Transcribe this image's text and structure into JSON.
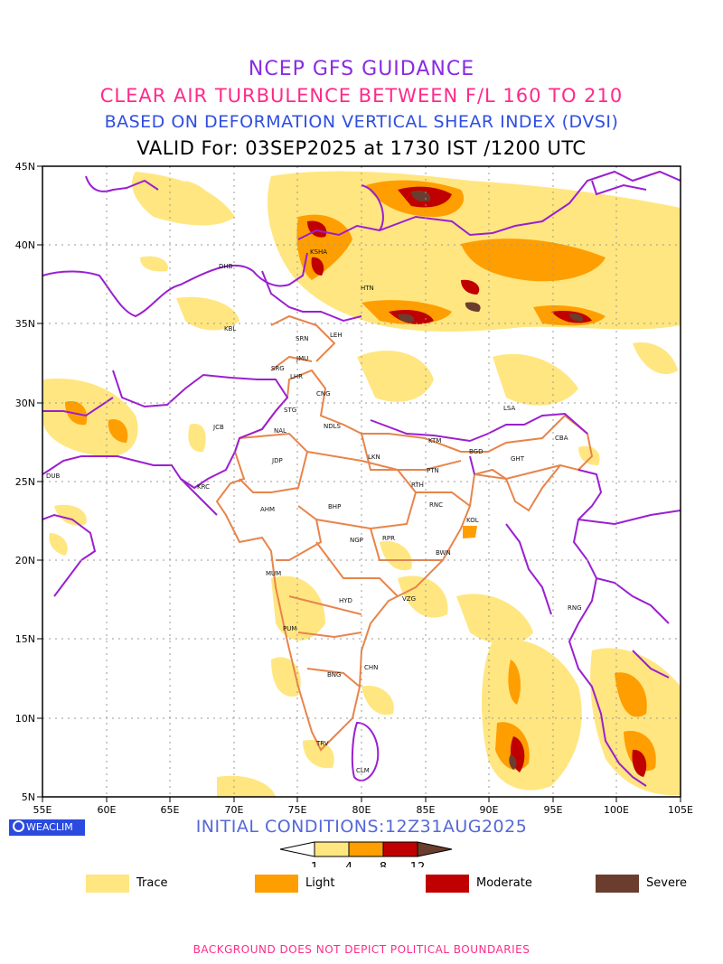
{
  "header": {
    "line1": "NCEP GFS GUIDANCE",
    "line2": "CLEAR AIR TURBULENCE BETWEEN F/L 160 TO 210",
    "line3": "BASED ON DEFORMATION VERTICAL SHEAR INDEX (DVSI)",
    "line4": "VALID For: 03SEP2025 at 1730 IST /1200 UTC"
  },
  "map": {
    "lon_labels": [
      "55E",
      "60E",
      "65E",
      "70E",
      "75E",
      "80E",
      "85E",
      "90E",
      "95E",
      "100E",
      "105E"
    ],
    "lat_labels": [
      "45N",
      "40N",
      "35N",
      "30N",
      "25N",
      "20N",
      "15N",
      "10N",
      "5N"
    ],
    "lon_range": [
      55,
      105
    ],
    "lat_range": [
      5,
      45
    ],
    "grid": "dotted",
    "colors": {
      "trace": "#ffe680",
      "light": "#ff9e00",
      "moderate": "#c00000",
      "severe": "#6b3d2e",
      "boundary": "#9b1fd0",
      "india_regions": "#e8844a"
    },
    "cities": [
      {
        "code": "DHB"
      },
      {
        "code": "KSHA"
      },
      {
        "code": "HTN"
      },
      {
        "code": "KBL"
      },
      {
        "code": "SRN"
      },
      {
        "code": "LEH"
      },
      {
        "code": "JMU"
      },
      {
        "code": "SRG"
      },
      {
        "code": "LHR"
      },
      {
        "code": "CNG"
      },
      {
        "code": "STG"
      },
      {
        "code": "LSA"
      },
      {
        "code": "JCB"
      },
      {
        "code": "NAL"
      },
      {
        "code": "NDLS"
      },
      {
        "code": "KTM"
      },
      {
        "code": "CBA"
      },
      {
        "code": "BGD"
      },
      {
        "code": "GHT"
      },
      {
        "code": "JDP"
      },
      {
        "code": "LKN"
      },
      {
        "code": "PTN"
      },
      {
        "code": "DUB"
      },
      {
        "code": "KRC"
      },
      {
        "code": "RTH"
      },
      {
        "code": "BHP"
      },
      {
        "code": "RNC"
      },
      {
        "code": "AHM"
      },
      {
        "code": "KOL"
      },
      {
        "code": "NGP"
      },
      {
        "code": "RPR"
      },
      {
        "code": "BWN"
      },
      {
        "code": "MUM"
      },
      {
        "code": "RNG"
      },
      {
        "code": "HYD"
      },
      {
        "code": "VZG"
      },
      {
        "code": "PUM"
      },
      {
        "code": "CHN"
      },
      {
        "code": "BNG"
      },
      {
        "code": "TRV"
      },
      {
        "code": "CLM"
      }
    ]
  },
  "footer": {
    "logo_text": "WEACLIM",
    "initial_conditions": "INITIAL CONDITIONS:12Z31AUG2025",
    "colorbar_ticks": [
      "1",
      "4",
      "8",
      "12"
    ],
    "legend": [
      {
        "label": "Trace",
        "color": "#ffe680"
      },
      {
        "label": "Light",
        "color": "#ff9e00"
      },
      {
        "label": "Moderate",
        "color": "#c00000"
      },
      {
        "label": "Severe",
        "color": "#6b3d2e"
      }
    ],
    "disclaimer": "BACKGROUND DOES NOT DEPICT POLITICAL BOUNDARIES"
  }
}
